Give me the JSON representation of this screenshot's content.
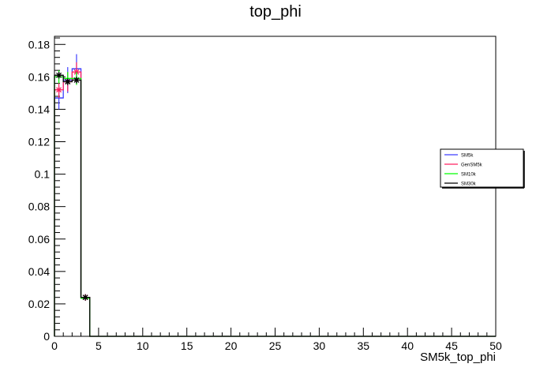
{
  "chart_data": {
    "type": "line",
    "title": "top_phi",
    "xlabel": "SM5k_top_phi",
    "ylabel": "",
    "xlim": [
      0,
      50
    ],
    "ylim": [
      0,
      0.185
    ],
    "x_ticks": [
      0,
      5,
      10,
      15,
      20,
      25,
      30,
      35,
      40,
      45,
      50
    ],
    "x_tick_labels": [
      "0",
      "5",
      "10",
      "15",
      "20",
      "25",
      "30",
      "35",
      "40",
      "45",
      "50"
    ],
    "y_ticks": [
      0,
      0.02,
      0.04,
      0.06,
      0.08,
      0.1,
      0.12,
      0.14,
      0.16,
      0.18
    ],
    "y_tick_labels": [
      "0",
      "0.02",
      "0.04",
      "0.06",
      "0.08",
      "0.1",
      "0.12",
      "0.14",
      "0.16",
      "0.18"
    ],
    "grid": false,
    "legend_position": "right",
    "bin_width": 1,
    "bin_edges": [
      0,
      1,
      2,
      3,
      4
    ],
    "series": [
      {
        "name": "SM5k",
        "color": "#3f3fff",
        "values": [
          0.147,
          0.158,
          0.165,
          0.024
        ],
        "errors": [
          0.007,
          0.008,
          0.009,
          0.002
        ]
      },
      {
        "name": "GenSM5k",
        "color": "#ff2060",
        "values": [
          0.152,
          0.157,
          0.163,
          0.024
        ],
        "errors": [
          0.005,
          0.006,
          0.006,
          0.002
        ]
      },
      {
        "name": "SM10k",
        "color": "#00ff00",
        "values": [
          0.16,
          0.159,
          0.159,
          0.0235
        ],
        "errors": [
          0.004,
          0.004,
          0.004,
          0.001
        ]
      },
      {
        "name": "SM30k",
        "color": "#000000",
        "values": [
          0.161,
          0.157,
          0.158,
          0.024
        ],
        "errors": [
          0.002,
          0.002,
          0.002,
          0.001
        ]
      }
    ]
  }
}
